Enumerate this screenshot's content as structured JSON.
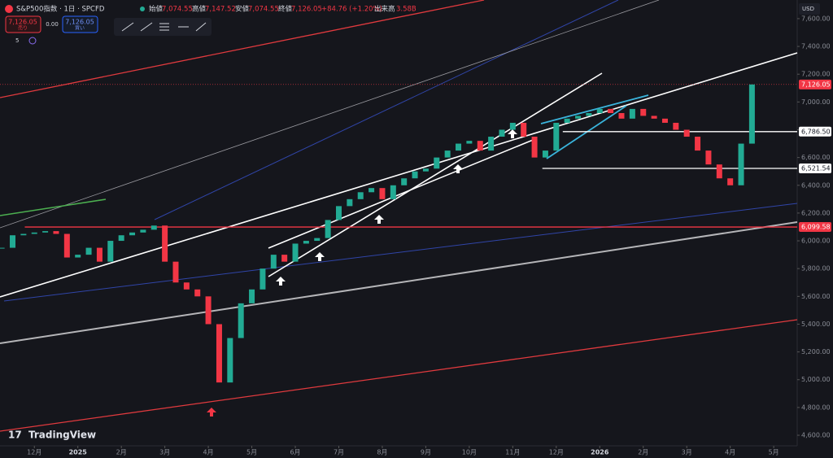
{
  "header": {
    "title": "S&P500指数 · 1日 · SPCFD",
    "open_label": "始値",
    "open": "7,074.55",
    "high_label": "高値",
    "high": "7,147.52",
    "low_label": "安値",
    "low": "7,074.55",
    "close_label": "終値",
    "close": "7,126.05",
    "change": "+84.76 (+1.20%)",
    "volume_label": "出来高",
    "volume": "3.58B",
    "sell_price": "7,126.05",
    "sell_label": "売り",
    "spread": "0.00",
    "buy_price": "7,126.05",
    "buy_label": "買い",
    "indicator_count": "5",
    "currency": "USD",
    "brand": "TradingView"
  },
  "chart_data": {
    "type": "candlestick",
    "x": [
      -0.75,
      -0.5,
      -0.25,
      0,
      0.25,
      0.5,
      0.75,
      1,
      1.25,
      1.5,
      1.75,
      2,
      2.25,
      2.5,
      2.75,
      3,
      3.25,
      3.5,
      3.75,
      4,
      4.25,
      4.5,
      4.75,
      5,
      5.25,
      5.5,
      5.75,
      6,
      6.25,
      6.5,
      6.75,
      7,
      7.25,
      7.5,
      7.75,
      8,
      8.25,
      8.5,
      8.75,
      9,
      9.25,
      9.5,
      9.75,
      10,
      10.25,
      10.5,
      10.75,
      11,
      11.25,
      11.5,
      11.75,
      12,
      12.25,
      12.5,
      12.75,
      13,
      13.25,
      13.5,
      13.75,
      14,
      14.25,
      14.5,
      14.75,
      15,
      15.25,
      15.5,
      15.75,
      16,
      16.25,
      16.5
    ],
    "series": [
      {
        "values": [
          5950,
          6040,
          6050,
          6060,
          6070,
          6050,
          5880,
          5900,
          5950,
          5850,
          6000,
          6040,
          6060,
          6080,
          6110,
          5850,
          5700,
          5650,
          5600,
          5400,
          4980,
          5300,
          5550,
          5650,
          5800,
          5900,
          5850,
          5980,
          6000,
          6020,
          6150,
          6250,
          6300,
          6350,
          6380,
          6300,
          6400,
          6450,
          6500,
          6520,
          6600,
          6650,
          6700,
          6720,
          6650,
          6750,
          6800,
          6850,
          6750,
          6600,
          6650,
          6850,
          6880,
          6900,
          6920,
          6950,
          6920,
          6880,
          6950,
          6900,
          6880,
          6850,
          6800,
          6750,
          6650,
          6550,
          6450,
          6400,
          6700,
          7126.05
        ]
      }
    ],
    "up_color": "#22ab94",
    "down_color": "#f23645",
    "xlim": [
      -0.79,
      17.54
    ],
    "ylim": [
      4524,
      7705
    ],
    "xticks": [
      {
        "value": 0,
        "label": "12月"
      },
      {
        "value": 1,
        "label": "2025"
      },
      {
        "value": 2,
        "label": "2月"
      },
      {
        "value": 3,
        "label": "3月"
      },
      {
        "value": 4,
        "label": "4月"
      },
      {
        "value": 5,
        "label": "5月"
      },
      {
        "value": 6,
        "label": "6月"
      },
      {
        "value": 7,
        "label": "7月"
      },
      {
        "value": 8,
        "label": "8月"
      },
      {
        "value": 9,
        "label": "9月"
      },
      {
        "value": 10,
        "label": "10月"
      },
      {
        "value": 11,
        "label": "11月"
      },
      {
        "value": 12,
        "label": "12月"
      },
      {
        "value": 13,
        "label": "2026"
      },
      {
        "value": 14,
        "label": "2月"
      },
      {
        "value": 15,
        "label": "3月"
      },
      {
        "value": 16,
        "label": "4月"
      },
      {
        "value": 17,
        "label": "5月"
      }
    ],
    "yticks": [
      {
        "value": 4600,
        "label": "4,600.00"
      },
      {
        "value": 4800,
        "label": "4,800.00"
      },
      {
        "value": 5000,
        "label": "5,000.00"
      },
      {
        "value": 5200,
        "label": "5,200.00"
      },
      {
        "value": 5400,
        "label": "5,400.00"
      },
      {
        "value": 5600,
        "label": "5,600.00"
      },
      {
        "value": 5800,
        "label": "5,800.00"
      },
      {
        "value": 6000,
        "label": "6,000.00"
      },
      {
        "value": 6200,
        "label": "6,200.00"
      },
      {
        "value": 6400,
        "label": "6,400.00"
      },
      {
        "value": 6600,
        "label": "6,600.00"
      },
      {
        "value": 6800,
        "label": "6,800.00"
      },
      {
        "value": 7000,
        "label": "7,000.00"
      },
      {
        "value": 7200,
        "label": "7,200.00"
      },
      {
        "value": 7400,
        "label": "7,400.00"
      },
      {
        "value": 7600,
        "label": "7,600.00"
      }
    ],
    "levels": [
      {
        "value": 6786.5,
        "label": "6,786.50",
        "start": 12.15,
        "color": "#ffffff"
      },
      {
        "value": 6521.54,
        "label": "6,521.54",
        "start": 11.68,
        "color": "#ffffff"
      },
      {
        "value": 6099.58,
        "label": "6,099.58",
        "start": -0.22,
        "color": "#f23645"
      }
    ],
    "last_price": {
      "value": 7126.05,
      "label": "7,126.05"
    }
  }
}
